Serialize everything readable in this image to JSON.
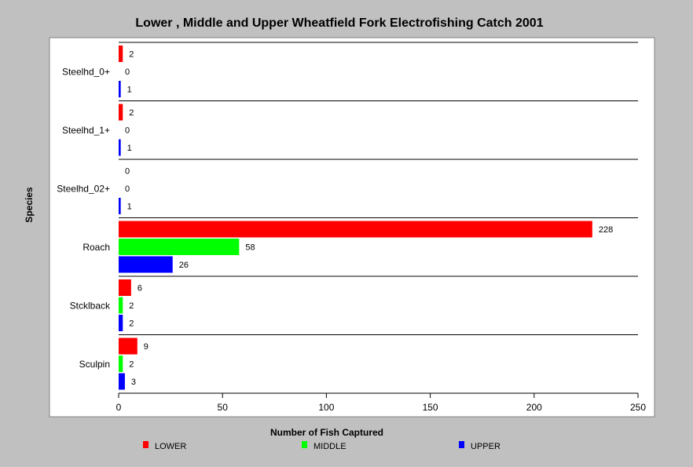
{
  "chart_data": {
    "type": "bar",
    "orientation": "horizontal",
    "title": "Lower , Middle and Upper Wheatfield Fork Electrofishing Catch 2001",
    "xlabel": "Number of Fish Captured",
    "ylabel": "Species",
    "categories": [
      "Steelhd_0+",
      "Steelhd_1+",
      "Steelhd_02+",
      "Roach",
      "Stcklback",
      "Sculpin"
    ],
    "series": [
      {
        "name": "LOWER",
        "color": "#ff0000",
        "values": [
          2,
          2,
          0,
          228,
          6,
          9
        ]
      },
      {
        "name": "MIDDLE",
        "color": "#00ff00",
        "values": [
          0,
          0,
          0,
          58,
          2,
          2
        ]
      },
      {
        "name": "UPPER",
        "color": "#0000ff",
        "values": [
          1,
          1,
          1,
          26,
          2,
          3
        ]
      }
    ],
    "xlim": [
      0,
      250
    ],
    "xticks": [
      0,
      50,
      100,
      150,
      200,
      250
    ],
    "grid": false,
    "legend_position": "bottom"
  }
}
